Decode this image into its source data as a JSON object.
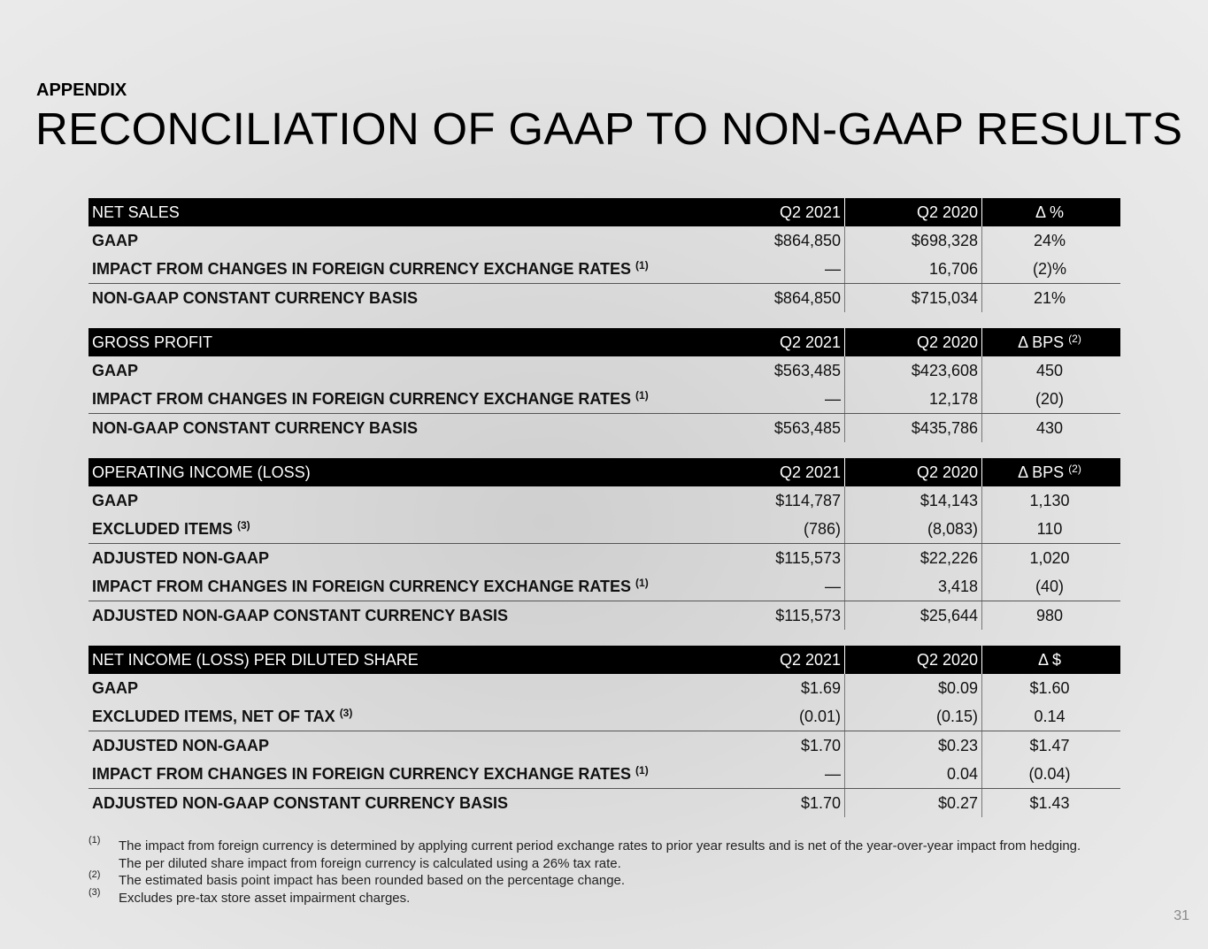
{
  "header": {
    "kicker": "APPENDIX",
    "title": "RECONCILIATION OF GAAP TO NON-GAAP RESULTS"
  },
  "tables": [
    {
      "header": {
        "label": "NET SALES",
        "columns": [
          "Q2 2021",
          "Q2 2020",
          "Δ %"
        ]
      },
      "rows": [
        {
          "label": "GAAP",
          "values": [
            "$864,850",
            "$698,328",
            "24%"
          ]
        },
        {
          "label": "IMPACT FROM CHANGES IN FOREIGN CURRENCY EXCHANGE RATES",
          "note": "(1)",
          "values": [
            "—",
            "16,706",
            "(2)%"
          ]
        },
        {
          "label": "NON-GAAP CONSTANT CURRENCY BASIS",
          "rule_above": true,
          "values": [
            "$864,850",
            "$715,034",
            "21%"
          ]
        }
      ]
    },
    {
      "header": {
        "label": "GROSS PROFIT",
        "columns": [
          "Q2 2021",
          "Q2 2020",
          "Δ BPS"
        ],
        "note": "(2)"
      },
      "rows": [
        {
          "label": "GAAP",
          "values": [
            "$563,485",
            "$423,608",
            "450"
          ]
        },
        {
          "label": "IMPACT FROM CHANGES IN FOREIGN CURRENCY EXCHANGE RATES",
          "note": "(1)",
          "values": [
            "—",
            "12,178",
            "(20)"
          ]
        },
        {
          "label": "NON-GAAP CONSTANT CURRENCY BASIS",
          "rule_above": true,
          "values": [
            "$563,485",
            "$435,786",
            "430"
          ]
        }
      ]
    },
    {
      "header": {
        "label": "OPERATING INCOME  (LOSS)",
        "columns": [
          "Q2 2021",
          "Q2 2020",
          "Δ BPS"
        ],
        "note": "(2)"
      },
      "rows": [
        {
          "label": "GAAP",
          "values": [
            "$114,787",
            "$14,143",
            "1,130"
          ]
        },
        {
          "label": "EXCLUDED ITEMS",
          "note": "(3)",
          "values": [
            "(786)",
            "(8,083)",
            "110"
          ]
        },
        {
          "label": "ADJUSTED NON-GAAP",
          "rule_above": true,
          "values": [
            "$115,573",
            "$22,226",
            "1,020"
          ]
        },
        {
          "label": "IMPACT FROM CHANGES IN FOREIGN CURRENCY EXCHANGE RATES",
          "note": "(1)",
          "values": [
            "—",
            "3,418",
            "(40)"
          ]
        },
        {
          "label": "ADJUSTED NON-GAAP CONSTANT CURRENCY BASIS",
          "rule_above": true,
          "values": [
            "$115,573",
            "$25,644",
            "980"
          ]
        }
      ]
    },
    {
      "header": {
        "label": "NET INCOME (LOSS) PER DILUTED SHARE",
        "columns": [
          "Q2 2021",
          "Q2 2020",
          "Δ $"
        ]
      },
      "rows": [
        {
          "label": "GAAP",
          "values": [
            "$1.69",
            "$0.09",
            "$1.60"
          ]
        },
        {
          "label": "EXCLUDED ITEMS, NET OF TAX",
          "note": "(3)",
          "values": [
            "(0.01)",
            "(0.15)",
            "0.14"
          ]
        },
        {
          "label": "ADJUSTED NON-GAAP",
          "rule_above": true,
          "values": [
            "$1.70",
            "$0.23",
            "$1.47"
          ]
        },
        {
          "label": "IMPACT FROM CHANGES IN FOREIGN CURRENCY EXCHANGE RATES",
          "note": "(1)",
          "values": [
            "—",
            "0.04",
            "(0.04)"
          ]
        },
        {
          "label": "ADJUSTED NON-GAAP CONSTANT CURRENCY BASIS",
          "rule_above": true,
          "values": [
            "$1.70",
            "$0.27",
            "$1.43"
          ]
        }
      ]
    }
  ],
  "footnotes": [
    {
      "marker": "(1)",
      "lines": [
        "The impact from foreign currency is determined by applying current period exchange rates to prior year results and is net of the year-over-year impact from hedging.",
        "The per diluted share impact from foreign currency is calculated using a 26% tax rate."
      ]
    },
    {
      "marker": "(2)",
      "lines": [
        "The estimated basis point impact has been rounded based on the percentage change."
      ]
    },
    {
      "marker": "(3)",
      "lines": [
        "Excludes pre-tax store asset impairment charges."
      ]
    }
  ],
  "page_number": "31"
}
